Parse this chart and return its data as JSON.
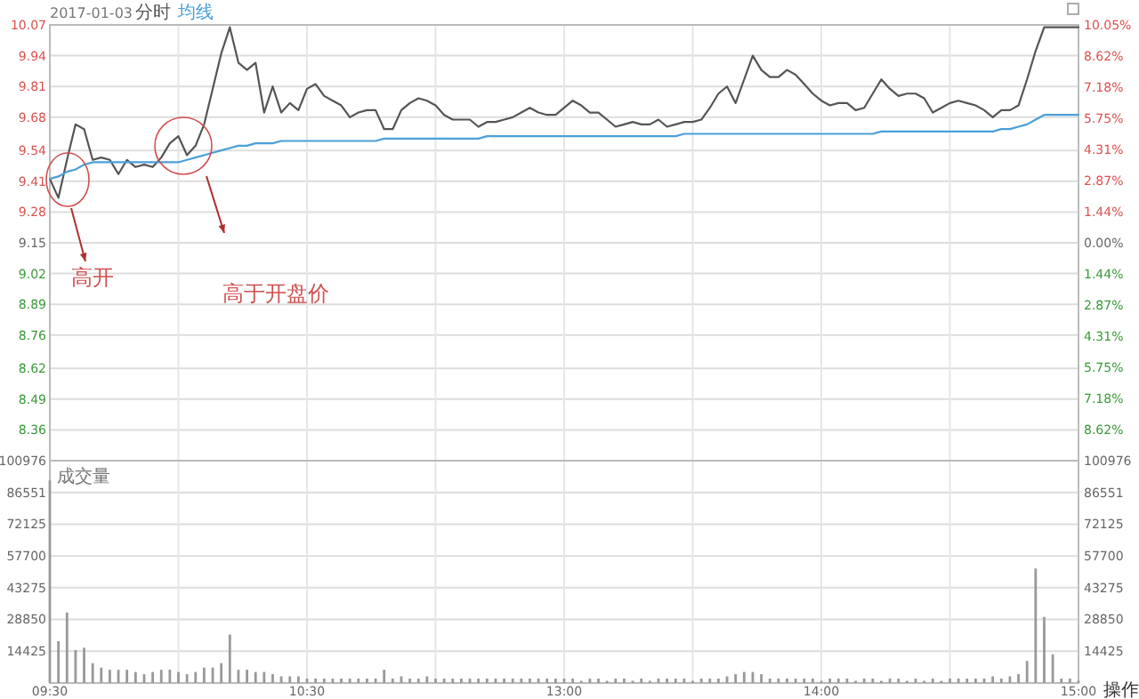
{
  "chart_data": [
    {
      "type": "line",
      "title": "2017-01-03",
      "legend": "top left",
      "grid": true,
      "tick_labels": "y",
      "categories": [
        null,
        null,
        null,
        null,
        null,
        null,
        null,
        null,
        null,
        null,
        null,
        null,
        null,
        null,
        null,
        null,
        null,
        null,
        null,
        null,
        null,
        null,
        null,
        null,
        null,
        null,
        null,
        null,
        null,
        null,
        null,
        null,
        null,
        null,
        null,
        null,
        null,
        null,
        null,
        null,
        null,
        null,
        null,
        null,
        null,
        null,
        null,
        null,
        null,
        null,
        null,
        null,
        null,
        null,
        null,
        null,
        null,
        null,
        null,
        null,
        null,
        null,
        null,
        null,
        null,
        null,
        null,
        null,
        null,
        null,
        null,
        null,
        null,
        null,
        null,
        null,
        null,
        null,
        null,
        null,
        null,
        null,
        null,
        null,
        null,
        null,
        null,
        null,
        null,
        null,
        null,
        null,
        null,
        null,
        null,
        null,
        null,
        null,
        null,
        null,
        null,
        null,
        null,
        null,
        null,
        null,
        null,
        null,
        null,
        null,
        null,
        null,
        null,
        null,
        null,
        null,
        null,
        null,
        null,
        null,
        null
      ],
      "ylim": [
        8.23,
        10.07
      ],
      "yticks": [
        10.07,
        9.94,
        9.81,
        9.68,
        9.54,
        9.41,
        9.28,
        9.15,
        9.02,
        8.89,
        8.76,
        8.62,
        8.49,
        8.36
      ],
      "y2lim": [
        -10.05,
        10.05
      ],
      "y2ticks": [
        {
          "value": 10.05,
          "label": "10.05%"
        },
        {
          "value": 8.62,
          "label": "8.62%"
        },
        {
          "value": 7.18,
          "label": "7.18%"
        },
        {
          "value": 5.75,
          "label": "5.75%"
        },
        {
          "value": 4.31,
          "label": "4.31%"
        },
        {
          "value": 2.87,
          "label": "2.87%"
        },
        {
          "value": 1.44,
          "label": "1.44%"
        },
        {
          "value": 0,
          "label": "0.00%"
        },
        {
          "value": -1.44,
          "label": "1.44%"
        },
        {
          "value": -2.87,
          "label": "2.87%"
        },
        {
          "value": -4.31,
          "label": "4.31%"
        },
        {
          "value": -5.75,
          "label": "5.75%"
        },
        {
          "value": -7.18,
          "label": "7.18%"
        },
        {
          "value": -8.62,
          "label": "8.62%"
        }
      ],
      "annotations": [
        "高开",
        "高于开盘价"
      ],
      "series": [
        {
          "name": "分时",
          "color": "#555555",
          "values": [
            9.42,
            9.34,
            9.5,
            9.65,
            9.63,
            9.5,
            9.51,
            9.5,
            9.44,
            9.5,
            9.47,
            9.48,
            9.47,
            9.51,
            9.57,
            9.6,
            9.52,
            9.56,
            9.65,
            9.8,
            9.95,
            10.06,
            9.91,
            9.88,
            9.91,
            9.7,
            9.81,
            9.7,
            9.74,
            9.71,
            9.8,
            9.82,
            9.77,
            9.75,
            9.73,
            9.68,
            9.7,
            9.71,
            9.71,
            9.63,
            9.63,
            9.71,
            9.74,
            9.76,
            9.75,
            9.73,
            9.69,
            9.67,
            9.67,
            9.67,
            9.64,
            9.66,
            9.66,
            9.67,
            9.68,
            9.7,
            9.72,
            9.7,
            9.69,
            9.69,
            9.72,
            9.75,
            9.73,
            9.7,
            9.7,
            9.67,
            9.64,
            9.65,
            9.66,
            9.65,
            9.65,
            9.67,
            9.64,
            9.65,
            9.66,
            9.66,
            9.67,
            9.72,
            9.78,
            9.81,
            9.74,
            9.84,
            9.94,
            9.88,
            9.85,
            9.85,
            9.88,
            9.86,
            9.82,
            9.78,
            9.75,
            9.73,
            9.74,
            9.74,
            9.71,
            9.72,
            9.78,
            9.84,
            9.8,
            9.77,
            9.78,
            9.78,
            9.76,
            9.7,
            9.72,
            9.74,
            9.75,
            9.74,
            9.73,
            9.71,
            9.68,
            9.71,
            9.71,
            9.73,
            9.84,
            9.96,
            10.06,
            10.06,
            10.06,
            10.06,
            10.06
          ]
        },
        {
          "name": "均线",
          "color": "#4a9fd8",
          "values": [
            9.42,
            9.43,
            9.45,
            9.46,
            9.48,
            9.49,
            9.49,
            9.49,
            9.49,
            9.49,
            9.49,
            9.49,
            9.49,
            9.49,
            9.49,
            9.49,
            9.5,
            9.51,
            9.52,
            9.53,
            9.54,
            9.55,
            9.56,
            9.56,
            9.57,
            9.57,
            9.57,
            9.58,
            9.58,
            9.58,
            9.58,
            9.58,
            9.58,
            9.58,
            9.58,
            9.58,
            9.58,
            9.58,
            9.58,
            9.59,
            9.59,
            9.59,
            9.59,
            9.59,
            9.59,
            9.59,
            9.59,
            9.59,
            9.59,
            9.59,
            9.59,
            9.6,
            9.6,
            9.6,
            9.6,
            9.6,
            9.6,
            9.6,
            9.6,
            9.6,
            9.6,
            9.6,
            9.6,
            9.6,
            9.6,
            9.6,
            9.6,
            9.6,
            9.6,
            9.6,
            9.6,
            9.6,
            9.6,
            9.6,
            9.61,
            9.61,
            9.61,
            9.61,
            9.61,
            9.61,
            9.61,
            9.61,
            9.61,
            9.61,
            9.61,
            9.61,
            9.61,
            9.61,
            9.61,
            9.61,
            9.61,
            9.61,
            9.61,
            9.61,
            9.61,
            9.61,
            9.61,
            9.62,
            9.62,
            9.62,
            9.62,
            9.62,
            9.62,
            9.62,
            9.62,
            9.62,
            9.62,
            9.62,
            9.62,
            9.62,
            9.62,
            9.63,
            9.63,
            9.64,
            9.65,
            9.67,
            9.69,
            9.69,
            9.69,
            9.69,
            9.69
          ]
        }
      ]
    },
    {
      "type": "bar",
      "title": "成交量",
      "grid": true,
      "categories": [
        "09:30",
        null,
        null,
        null,
        null,
        null,
        null,
        null,
        null,
        null,
        null,
        null,
        null,
        null,
        null,
        null,
        null,
        null,
        null,
        null,
        null,
        null,
        null,
        null,
        null,
        null,
        null,
        null,
        null,
        null,
        "10:30",
        null,
        null,
        null,
        null,
        null,
        null,
        null,
        null,
        null,
        null,
        null,
        null,
        null,
        null,
        null,
        null,
        null,
        null,
        null,
        null,
        null,
        null,
        null,
        null,
        null,
        null,
        null,
        null,
        null,
        "13:00",
        null,
        null,
        null,
        null,
        null,
        null,
        null,
        null,
        null,
        null,
        null,
        null,
        null,
        null,
        null,
        null,
        null,
        null,
        null,
        null,
        null,
        null,
        null,
        null,
        null,
        null,
        null,
        null,
        null,
        "14:00",
        null,
        null,
        null,
        null,
        null,
        null,
        null,
        null,
        null,
        null,
        null,
        null,
        null,
        null,
        null,
        null,
        null,
        null,
        null,
        null,
        null,
        null,
        null,
        null,
        null,
        null,
        null,
        null,
        null,
        "15:00"
      ],
      "ylim": [
        0,
        100976
      ],
      "yticks": [
        100976,
        86551,
        72125,
        57700,
        43275,
        28850,
        14425
      ],
      "y2lim": [
        0,
        100976
      ],
      "y2ticks": [
        100976,
        86551,
        72125,
        57700,
        43275,
        28850,
        14425
      ],
      "annotations": [
        "操作"
      ],
      "series": [
        {
          "color": "#999999",
          "values": [
            92000,
            19000,
            32000,
            15000,
            16000,
            9000,
            7000,
            6000,
            6000,
            6000,
            5000,
            4000,
            5000,
            6000,
            6000,
            5000,
            4000,
            5000,
            7000,
            7000,
            9000,
            22000,
            6000,
            6000,
            5000,
            5000,
            4000,
            3000,
            3000,
            3000,
            2000,
            2000,
            2000,
            2000,
            2000,
            2000,
            2000,
            2000,
            2000,
            6000,
            2000,
            3000,
            2000,
            2000,
            3000,
            2000,
            2000,
            2000,
            2000,
            2000,
            2000,
            2000,
            2000,
            2000,
            2000,
            2000,
            2000,
            2000,
            2000,
            2000,
            2000,
            2000,
            1000,
            2000,
            2000,
            1000,
            2000,
            2000,
            1000,
            2000,
            1000,
            2000,
            2000,
            2000,
            2000,
            1000,
            2000,
            2000,
            2000,
            3000,
            4000,
            5000,
            5000,
            4000,
            2000,
            2000,
            2000,
            2000,
            2000,
            2000,
            1000,
            2000,
            2000,
            2000,
            1000,
            2000,
            2000,
            1000,
            2000,
            2000,
            1000,
            2000,
            1000,
            2000,
            1000,
            2000,
            2000,
            2000,
            2000,
            2000,
            3000,
            2000,
            3000,
            4000,
            10000,
            52000,
            30000,
            13000,
            2000,
            2000,
            1000
          ]
        }
      ]
    }
  ]
}
